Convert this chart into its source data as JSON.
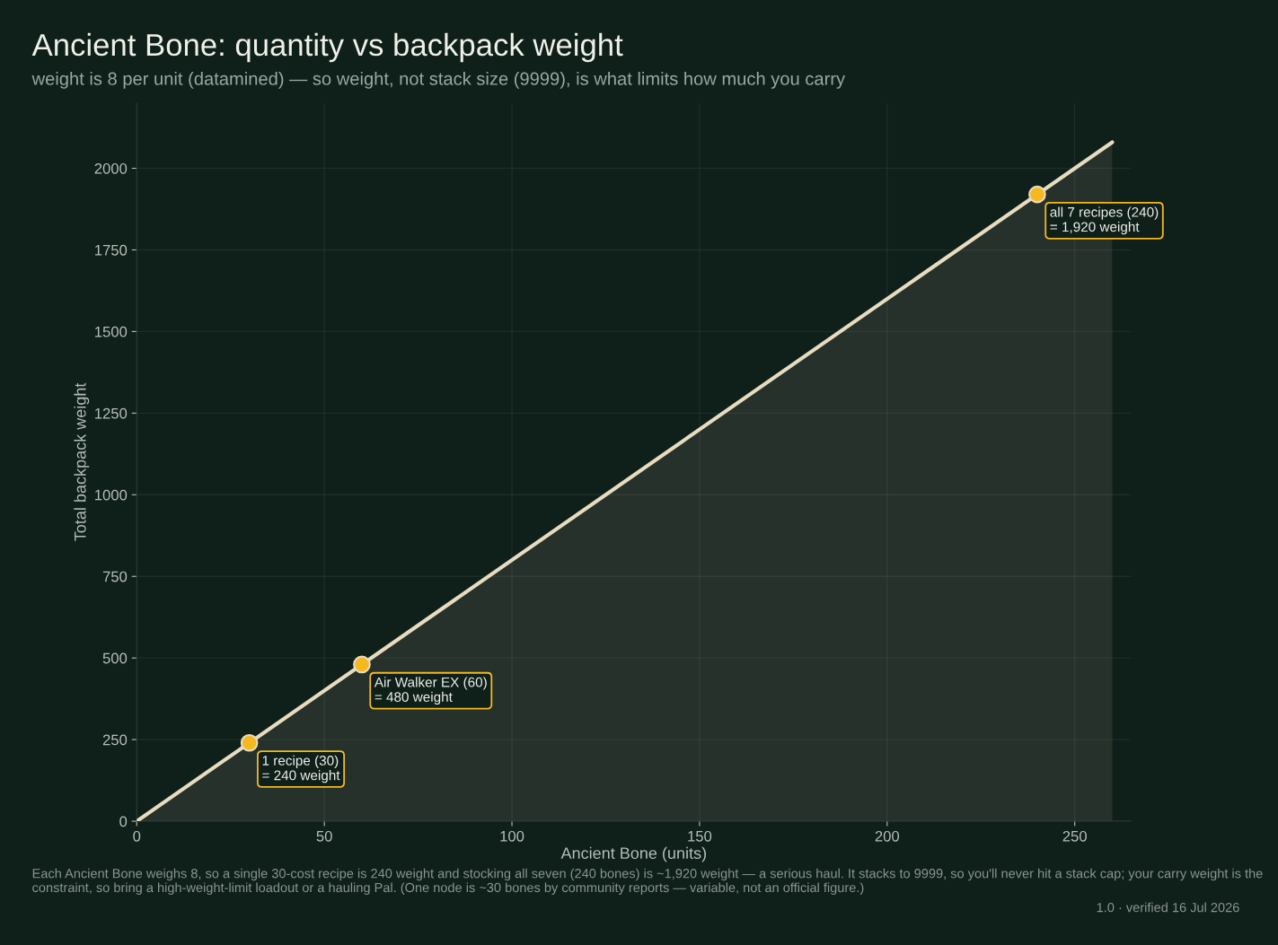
{
  "chart_data": {
    "type": "area",
    "title": "Ancient Bone: quantity vs backpack weight",
    "subtitle": "weight is 8 per unit (datamined) — so weight, not stack size (9999), is what limits how much you carry",
    "xlabel": "Ancient Bone (units)",
    "ylabel": "Total backpack weight",
    "xlim": [
      0,
      265
    ],
    "ylim": [
      0,
      2200
    ],
    "xticks": [
      0,
      50,
      100,
      150,
      200,
      250
    ],
    "yticks": [
      0,
      250,
      500,
      750,
      1000,
      1250,
      1500,
      1750,
      2000
    ],
    "grid": true,
    "legend": false,
    "series": [
      {
        "color": "#e8dcc0",
        "x": [
          0,
          260
        ],
        "values": [
          0,
          2080
        ]
      },
      {
        "type": "scatter",
        "color": "#f5b820",
        "marker": "circle",
        "x": [
          30,
          60,
          240
        ],
        "values": [
          240,
          480,
          1920
        ]
      }
    ],
    "annotations": [
      {
        "text": "1 recipe (30)\n= 240 weight",
        "x": 30,
        "y": 240
      },
      {
        "text": "Air Walker EX (60)\n= 480 weight",
        "x": 60,
        "y": 480
      },
      {
        "text": "all 7 recipes (240)\n= 1,920 weight",
        "x": 240,
        "y": 1920
      },
      "Each Ancient Bone weighs 8, so a single 30-cost recipe is 240 weight and stocking all seven (240 bones) is ~1,920 weight — a serious haul. It stacks to 9999, so you'll never hit a stack cap; your carry weight is the constraint, so bring a high-weight-limit loadout or a hauling Pal. (One node is ~30 bones by community reports — variable, not an official figure.)",
      "1.0 · verified 16 Jul 2026"
    ]
  }
}
